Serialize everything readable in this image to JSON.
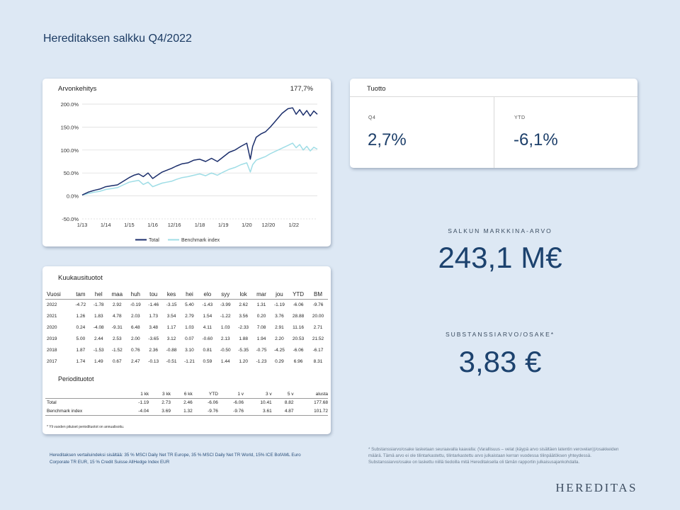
{
  "page": {
    "title": "Hereditaksen salkku Q4/2022"
  },
  "chart_card": {
    "title": "Arvonkehitys",
    "value": "177,7%"
  },
  "chart_data": {
    "type": "line",
    "title": "Arvonkehitys",
    "ylim": [
      -50,
      200
    ],
    "yticks": [
      "200.0%",
      "150.0%",
      "100.0%",
      "50.0%",
      "0.0%",
      "-50.0%"
    ],
    "ytick_values": [
      200,
      150,
      100,
      50,
      0,
      -50
    ],
    "xticks": [
      "1/13",
      "1/14",
      "1/15",
      "1/16",
      "12/16",
      "1/18",
      "1/19",
      "1/20",
      "12/20",
      "1/22"
    ],
    "xtick_values": [
      2013.0,
      2014.0,
      2015.0,
      2016.0,
      2016.92,
      2018.0,
      2019.0,
      2020.0,
      2020.92,
      2022.0
    ],
    "xlim": [
      2013.0,
      2023.0
    ],
    "grid": "horizontal",
    "legend_position": "bottom",
    "colors": {
      "total": "#1b2e6b",
      "benchmark": "#9fdde6"
    },
    "series": [
      {
        "name": "Total",
        "x": [
          2013.0,
          2013.25,
          2013.5,
          2013.75,
          2014.0,
          2014.25,
          2014.5,
          2014.75,
          2015.0,
          2015.2,
          2015.4,
          2015.6,
          2015.8,
          2016.0,
          2016.2,
          2016.4,
          2016.6,
          2016.8,
          2017.0,
          2017.25,
          2017.5,
          2017.75,
          2018.0,
          2018.25,
          2018.5,
          2018.75,
          2019.0,
          2019.25,
          2019.5,
          2019.75,
          2020.0,
          2020.15,
          2020.25,
          2020.4,
          2020.6,
          2020.8,
          2021.0,
          2021.25,
          2021.5,
          2021.75,
          2021.95,
          2022.1,
          2022.25,
          2022.4,
          2022.55,
          2022.7,
          2022.85,
          2023.0
        ],
        "values": [
          2,
          8,
          12,
          15,
          20,
          22,
          24,
          32,
          40,
          45,
          48,
          42,
          50,
          38,
          45,
          52,
          56,
          60,
          65,
          70,
          72,
          78,
          80,
          75,
          82,
          75,
          85,
          95,
          100,
          108,
          115,
          80,
          108,
          128,
          135,
          140,
          150,
          165,
          180,
          190,
          192,
          178,
          188,
          176,
          186,
          174,
          185,
          178
        ]
      },
      {
        "name": "Benchmark index",
        "x": [
          2013.0,
          2013.25,
          2013.5,
          2013.75,
          2014.0,
          2014.25,
          2014.5,
          2014.75,
          2015.0,
          2015.2,
          2015.4,
          2015.6,
          2015.8,
          2016.0,
          2016.2,
          2016.4,
          2016.6,
          2016.8,
          2017.0,
          2017.25,
          2017.5,
          2017.75,
          2018.0,
          2018.25,
          2018.5,
          2018.75,
          2019.0,
          2019.25,
          2019.5,
          2019.75,
          2020.0,
          2020.15,
          2020.25,
          2020.4,
          2020.6,
          2020.8,
          2021.0,
          2021.25,
          2021.5,
          2021.75,
          2021.95,
          2022.1,
          2022.25,
          2022.4,
          2022.55,
          2022.7,
          2022.85,
          2023.0
        ],
        "values": [
          2,
          5,
          8,
          10,
          14,
          16,
          18,
          24,
          30,
          32,
          34,
          25,
          30,
          20,
          24,
          28,
          30,
          32,
          36,
          40,
          42,
          45,
          48,
          44,
          50,
          45,
          52,
          58,
          62,
          68,
          72,
          52,
          68,
          78,
          82,
          86,
          92,
          98,
          104,
          110,
          115,
          105,
          112,
          100,
          108,
          98,
          106,
          102
        ]
      }
    ]
  },
  "return_card": {
    "title": "Tuotto",
    "q4_label": "Q4",
    "q4_value": "2,7%",
    "ytd_label": "YTD",
    "ytd_value": "-6,1%"
  },
  "kpis": {
    "market_value_label": "SALKUN MARKKINA-ARVO",
    "market_value": "243,1 M€",
    "nav_label": "SUBSTANSSIARVO/OSAKE*",
    "nav_value": "3,83 €"
  },
  "monthly_table": {
    "title": "Kuukausituotot",
    "headers": [
      "Vuosi",
      "tam",
      "hel",
      "maa",
      "huh",
      "tou",
      "kes",
      "hei",
      "elo",
      "syy",
      "lok",
      "mar",
      "jou",
      "YTD",
      "BM"
    ],
    "rows": [
      [
        "2022",
        "-4.72",
        "-1.78",
        "2.92",
        "-0.19",
        "-1.46",
        "-3.15",
        "5.40",
        "-1.43",
        "-3.99",
        "2.62",
        "1.31",
        "-1.19",
        "-6.06",
        "-9.76"
      ],
      [
        "2021",
        "1.26",
        "1.83",
        "4.78",
        "2.03",
        "1.73",
        "3.54",
        "2.79",
        "1.54",
        "-1.22",
        "3.56",
        "0.20",
        "3.76",
        "28.88",
        "20.00"
      ],
      [
        "2020",
        "0.24",
        "-4.08",
        "-9.31",
        "6.48",
        "3.48",
        "1.17",
        "1.03",
        "4.11",
        "1.03",
        "-2.33",
        "7.08",
        "2.91",
        "11.16",
        "2.71"
      ],
      [
        "2019",
        "5.00",
        "2.44",
        "2.53",
        "2.00",
        "-3.65",
        "3.12",
        "0.07",
        "-0.60",
        "2.13",
        "1.88",
        "1.94",
        "2.20",
        "20.53",
        "21.52"
      ],
      [
        "2018",
        "1.87",
        "-1.53",
        "-1.52",
        "0.76",
        "2.36",
        "-0.88",
        "3.10",
        "0.81",
        "-0.50",
        "-5.35",
        "-0.75",
        "-4.25",
        "-6.06",
        "-6.17"
      ],
      [
        "2017",
        "1.74",
        "1.49",
        "0.67",
        "2.47",
        "-0.13",
        "-0.51",
        "-1.21",
        "0.59",
        "1.44",
        "1.20",
        "-1.23",
        "0.29",
        "6.96",
        "8.31"
      ]
    ]
  },
  "period_table": {
    "title": "Periodituotot",
    "headers": [
      "",
      "1 kk",
      "3 kk",
      "6 kk",
      "YTD",
      "1 v",
      "3 v",
      "5 v",
      "alusta"
    ],
    "rows": [
      [
        "Total",
        "-1.19",
        "2.73",
        "2.46",
        "-6.06",
        "-6.06",
        "10.41",
        "8.82",
        "177.68"
      ],
      [
        "Benchmark index",
        "-4.04",
        "3.69",
        "1.32",
        "-9.76",
        "-9.76",
        "3.61",
        "4.87",
        "101.72"
      ]
    ],
    "note": "* Yli vuoden pituiset periodituotot on annualisoitu."
  },
  "footnotes": {
    "benchmark": "Hereditaksen vertailuindeksi sisältää: 35 % MSCI Daily Net TR Europe, 35 % MSCI Daily Net TR World, 15% ICE BofAML Euro Corporate TR EUR, 15 % Credit Suisse AllHedge Index EUR",
    "nav": "* Substanssiarvo/osake lasketaan seuraavalla kaavalla: (Varallisuus – velat (käypä arvo sisältäen latentin verovelan))/osakkeiden määrä. Tämä arvo ei ole tilintarkastettu, tilintarkastettu arvo julkaistaan kerran vuodessa tilinpäätöksen yhteydessä. Substanssiarvo/osake on laskettu niillä tiedoilla mitä Hereditaksella oli tämän rapportin julkaisusajankohdalla."
  },
  "brand": {
    "logo_text": "HEREDITAS"
  }
}
